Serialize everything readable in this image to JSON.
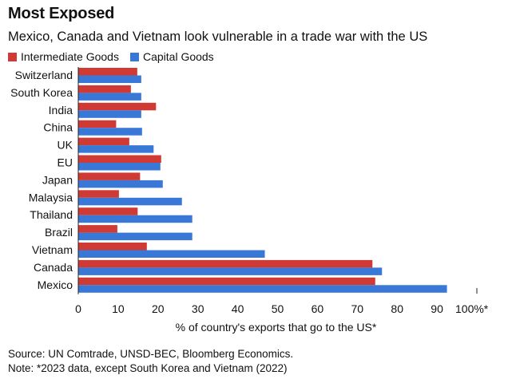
{
  "title": "Most Exposed",
  "subtitle": "Mexico, Canada and Vietnam look vulnerable in a trade war with the US",
  "source": "Source: UN Comtrade, UNSD-BEC, Bloomberg Economics.",
  "note": "Note: *2023 data, except South Korea and Vietnam (2022)",
  "chart_data": {
    "type": "bar",
    "orientation": "horizontal",
    "categories": [
      "Switzerland",
      "South Korea",
      "India",
      "China",
      "UK",
      "EU",
      "Japan",
      "Malaysia",
      "Thailand",
      "Brazil",
      "Vietnam",
      "Canada",
      "Mexico"
    ],
    "series": [
      {
        "name": "Intermediate Goods",
        "color": "#d03a35",
        "values": [
          14.8,
          13.2,
          19.5,
          9.5,
          12.8,
          20.8,
          15.5,
          10.2,
          14.9,
          9.8,
          17.2,
          73.8,
          74.5
        ]
      },
      {
        "name": "Capital Goods",
        "color": "#3a78d8",
        "values": [
          15.8,
          15.8,
          15.8,
          16.0,
          18.9,
          20.6,
          21.2,
          26.0,
          28.6,
          28.6,
          46.8,
          76.2,
          92.5
        ]
      }
    ],
    "xlim": [
      0,
      100
    ],
    "ticks": [
      0,
      10,
      20,
      30,
      40,
      50,
      60,
      70,
      80,
      90,
      100
    ],
    "tick_labels": [
      "0",
      "10",
      "20",
      "30",
      "40",
      "50",
      "60",
      "70",
      "80",
      "90",
      "100%*"
    ],
    "xlabel": "% of country's exports that go to the US*",
    "ylabel": "",
    "grid": false,
    "legend_position": "top-left"
  }
}
